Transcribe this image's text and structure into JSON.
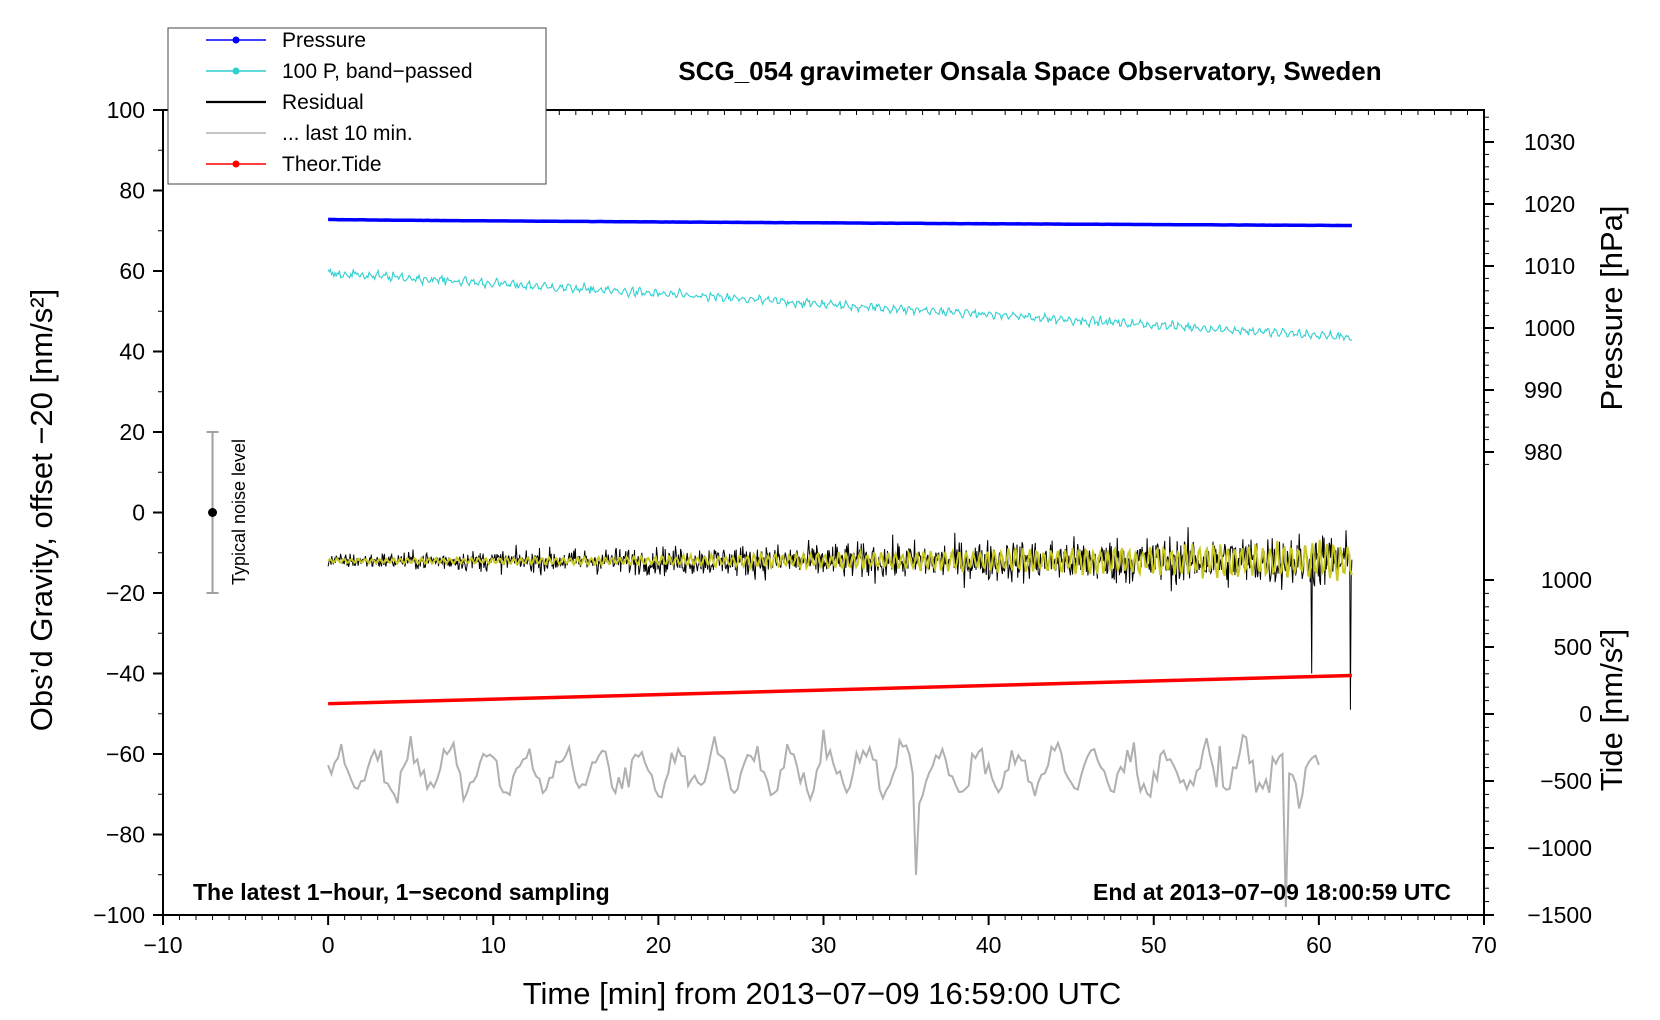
{
  "chart_data": {
    "type": "line",
    "title": "SCG_054 gravimeter Onsala Space Observatory, Sweden",
    "xlabel": "Time [min] from 2013−07−09 16:59:00 UTC",
    "ylabel_left": "Obs’d Gravity, offset −20 [nm/s²]",
    "ylabel_right_top": "Pressure [hPa]",
    "ylabel_right_bottom": "Tide [nm/s²]",
    "xlim": [
      -10,
      70
    ],
    "ylim": [
      -100,
      100
    ],
    "x_ticks": [
      -10,
      0,
      10,
      20,
      30,
      40,
      50,
      60,
      70
    ],
    "x_tick_labels": [
      "−10",
      "0",
      "10",
      "20",
      "30",
      "40",
      "50",
      "60",
      "70"
    ],
    "y_ticks": [
      100,
      80,
      60,
      40,
      20,
      0,
      -20,
      -40,
      -60,
      -80,
      -100
    ],
    "y_tick_labels": [
      "100",
      "80",
      "60",
      "40",
      "20",
      "0",
      "−20",
      "−40",
      "−60",
      "−80",
      "−100"
    ],
    "pressure_axis": {
      "ticks": [
        1030,
        1020,
        1010,
        1000,
        990,
        980
      ],
      "tick_labels": [
        "1030",
        "1020",
        "1010",
        "1000",
        "990",
        "980"
      ],
      "range": [
        970,
        1035
      ]
    },
    "tide_axis": {
      "ticks": [
        1000,
        500,
        0,
        -500,
        -1000,
        -1500
      ],
      "tick_labels": [
        "1000",
        "500",
        "0",
        "−500",
        "−1000",
        "−1500"
      ],
      "range": [
        -1500,
        1000
      ]
    },
    "legend": {
      "position": "top-left",
      "entries": [
        {
          "label": "Pressure",
          "color": "#0000ff",
          "marker": true
        },
        {
          "label": "100 P, band−passed",
          "color": "#30d0d0",
          "marker": true
        },
        {
          "label": "Residual",
          "color": "#000000",
          "marker": false
        },
        {
          "label": "... last 10 min.",
          "color": "#b0b0b0",
          "marker": false
        },
        {
          "label": "Theor.Tide",
          "color": "#ff0000",
          "marker": true
        }
      ]
    },
    "series": [
      {
        "name": "Pressure",
        "color": "#0000ff",
        "start_value": 72.8,
        "end_value": 71.3,
        "x_start": 0,
        "x_end": 62
      },
      {
        "name": "100 P, band−passed",
        "color": "#30d0d0",
        "start_value": 59.5,
        "end_value": 43.5,
        "x_start": 0,
        "x_end": 62
      },
      {
        "name": "Residual",
        "color": "#000000",
        "center_value": -12,
        "x_start": 0,
        "x_end": 62
      },
      {
        "name": "Residual smoothed",
        "color": "#c8c820",
        "center_value": -12,
        "x_start": 0,
        "x_end": 62
      },
      {
        "name": "Theor.Tide",
        "color": "#ff0000",
        "start_value": -47.5,
        "end_value": -40.5,
        "x_start": 0,
        "x_end": 62
      },
      {
        "name": "... last 10 min.",
        "color": "#b0b0b0",
        "center_value": -64,
        "x_start": 0,
        "x_end": 60
      }
    ],
    "annotations": {
      "left_bottom": "The latest 1−hour, 1−second sampling",
      "right_bottom": "End at 2013−07−09 18:00:59 UTC",
      "noise_label": "Typical noise level",
      "noise_bar": {
        "x": -7,
        "center": 0,
        "low": -20,
        "high": 20
      }
    }
  }
}
